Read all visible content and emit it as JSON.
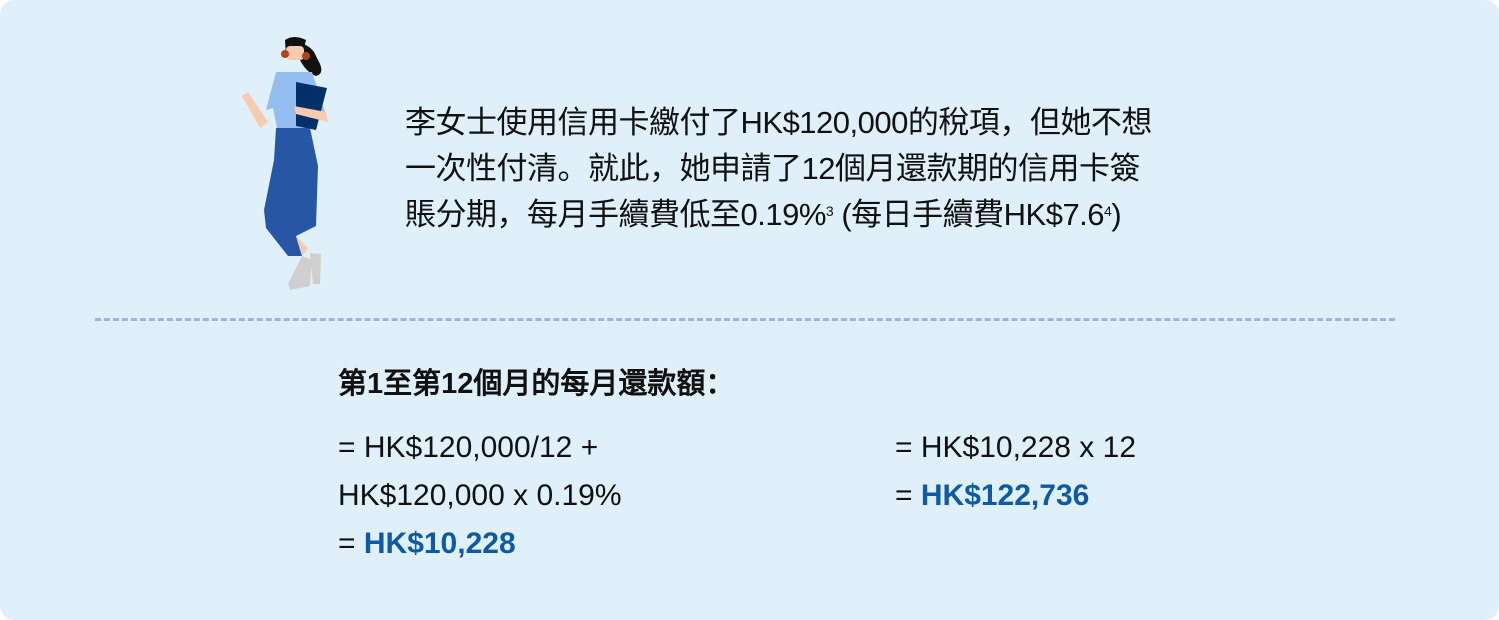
{
  "intro": {
    "line1": "李女士使用信用卡繳付了HK$120,000的稅項，但她不想",
    "line2": "一次性付清。就此，她申請了12個月還款期的信用卡簽",
    "line3a": "賬分期，每月手續費低至0.19%",
    "footnote1": "3",
    "line3b": " (每日手續費HK$7.6",
    "footnote2": "4",
    "line3c": ")"
  },
  "calc": {
    "heading": "第1至第12個月的每月還款額：",
    "left": {
      "line1": "= HK$120,000/12 +",
      "line2": "HK$120,000 x 0.19%",
      "line3_prefix": "= ",
      "line3_value": "HK$10,228"
    },
    "right": {
      "line1": "= HK$10,228 x 12",
      "line2_prefix": "= ",
      "line2_value": "HK$122,736"
    }
  },
  "colors": {
    "background": "#dff0fa",
    "highlight": "#0d5aa7",
    "divider": "#9db4dc"
  },
  "icons": {
    "illustration": "woman-holding-folder"
  }
}
